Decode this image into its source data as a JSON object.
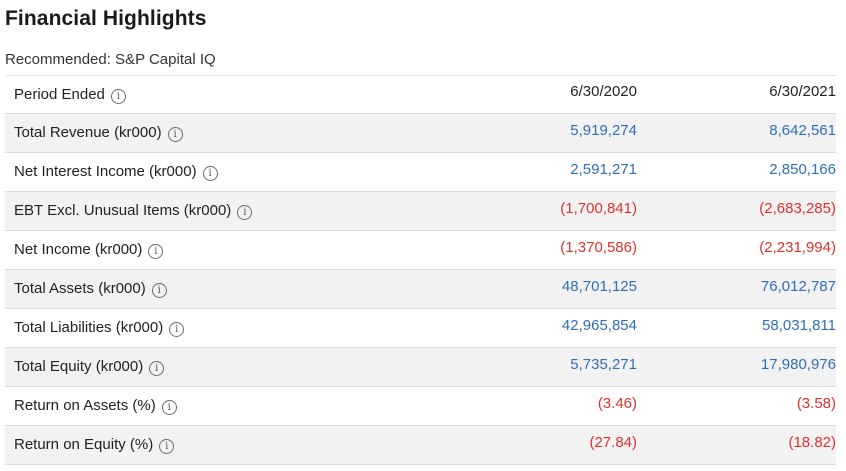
{
  "title": "Financial Highlights",
  "subtitle": "Recommended: S&P Capital IQ",
  "header": {
    "label": "Period Ended",
    "periods": [
      "6/30/2020",
      "6/30/2021"
    ]
  },
  "rows": [
    {
      "label": "Total Revenue (kr000)",
      "values": [
        "5,919,274",
        "8,642,561"
      ],
      "negative": [
        false,
        false
      ]
    },
    {
      "label": "Net Interest Income (kr000)",
      "values": [
        "2,591,271",
        "2,850,166"
      ],
      "negative": [
        false,
        false
      ]
    },
    {
      "label": "EBT Excl. Unusual Items (kr000)",
      "values": [
        "(1,700,841)",
        "(2,683,285)"
      ],
      "negative": [
        true,
        true
      ]
    },
    {
      "label": "Net Income (kr000)",
      "values": [
        "(1,370,586)",
        "(2,231,994)"
      ],
      "negative": [
        true,
        true
      ]
    },
    {
      "label": "Total Assets (kr000)",
      "values": [
        "48,701,125",
        "76,012,787"
      ],
      "negative": [
        false,
        false
      ]
    },
    {
      "label": "Total Liabilities (kr000)",
      "values": [
        "42,965,854",
        "58,031,811"
      ],
      "negative": [
        false,
        false
      ]
    },
    {
      "label": "Total Equity (kr000)",
      "values": [
        "5,735,271",
        "17,980,976"
      ],
      "negative": [
        false,
        false
      ]
    },
    {
      "label": "Return on Assets (%)",
      "values": [
        "(3.46)",
        "(3.58)"
      ],
      "negative": [
        true,
        true
      ]
    },
    {
      "label": "Return on Equity (%)",
      "values": [
        "(27.84)",
        "(18.82)"
      ],
      "negative": [
        true,
        true
      ]
    }
  ],
  "info_icon": {
    "name": "info-icon",
    "glyph": "i"
  },
  "colors": {
    "positive": "#2e6fb6",
    "negative": "#e0312e",
    "row_alt": "#f2f2f2"
  }
}
